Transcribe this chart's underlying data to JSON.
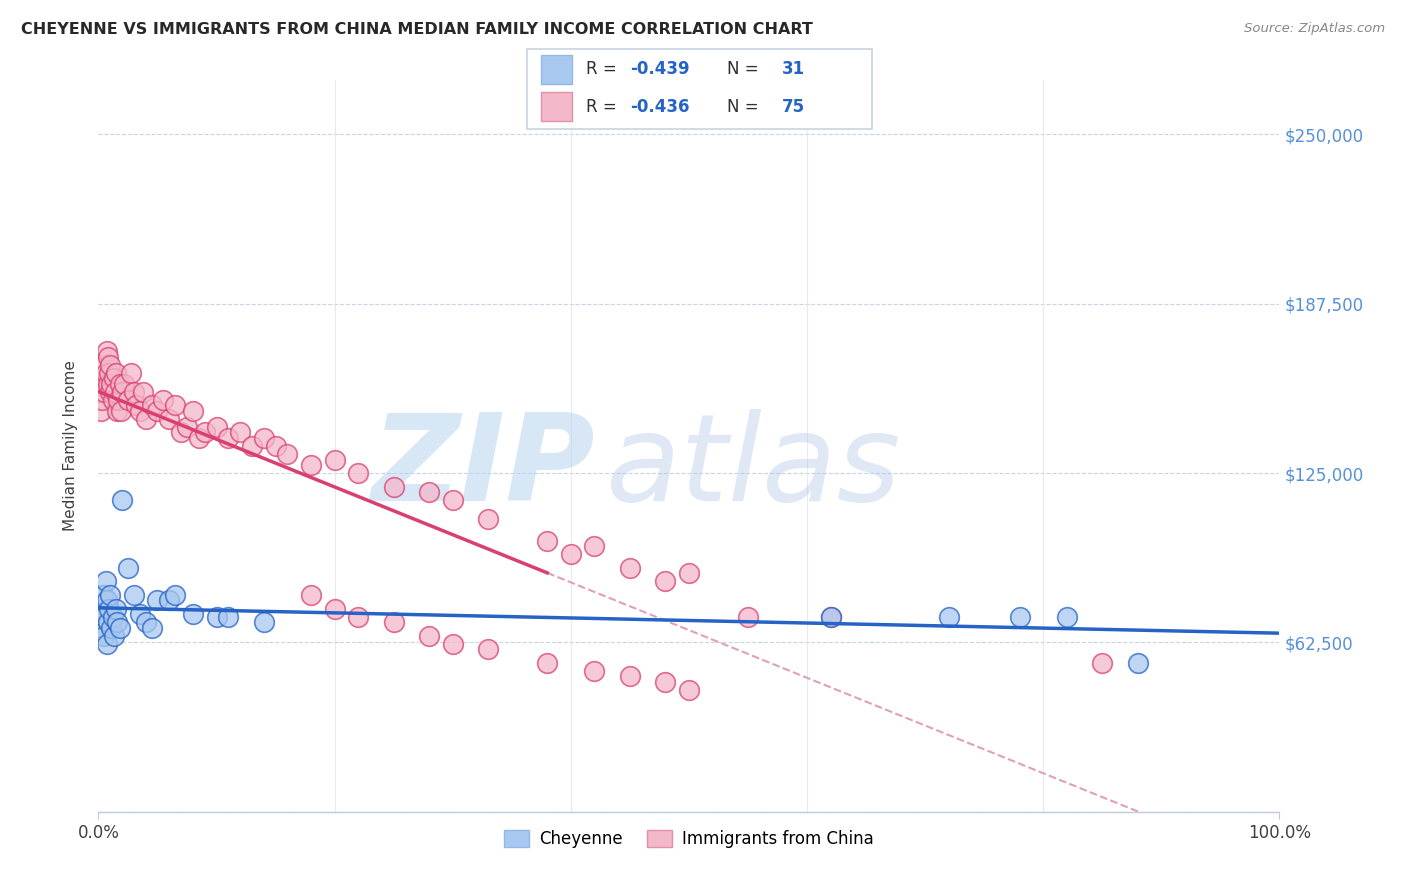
{
  "title": "CHEYENNE VS IMMIGRANTS FROM CHINA MEDIAN FAMILY INCOME CORRELATION CHART",
  "source": "Source: ZipAtlas.com",
  "ylabel": "Median Family Income",
  "xlim": [
    0.0,
    1.0
  ],
  "ylim": [
    0,
    270000
  ],
  "yticks": [
    0,
    62500,
    125000,
    187500,
    250000
  ],
  "ytick_labels": [
    "",
    "$62,500",
    "$125,000",
    "$187,500",
    "$250,000"
  ],
  "cheyenne_color": "#a8c8f0",
  "immigrants_color": "#f4b8cb",
  "line_blue": "#2563c7",
  "line_pink": "#d94070",
  "line_dashed": "#e0a0b8",
  "cheyenne_x": [
    0.002,
    0.003,
    0.004,
    0.005,
    0.005,
    0.006,
    0.007,
    0.007,
    0.008,
    0.009,
    0.01,
    0.011,
    0.012,
    0.013,
    0.015,
    0.016,
    0.018,
    0.02,
    0.025,
    0.03,
    0.035,
    0.04,
    0.045,
    0.05,
    0.06,
    0.065,
    0.08,
    0.1,
    0.11,
    0.14,
    0.62,
    0.72,
    0.78,
    0.82,
    0.88
  ],
  "cheyenne_y": [
    75000,
    68000,
    80000,
    72000,
    65000,
    85000,
    78000,
    62000,
    70000,
    75000,
    80000,
    68000,
    72000,
    65000,
    75000,
    70000,
    68000,
    115000,
    90000,
    80000,
    73000,
    70000,
    68000,
    78000,
    78000,
    80000,
    73000,
    72000,
    72000,
    70000,
    72000,
    72000,
    72000,
    72000,
    55000
  ],
  "immigrants_x": [
    0.002,
    0.003,
    0.004,
    0.005,
    0.005,
    0.006,
    0.007,
    0.008,
    0.008,
    0.009,
    0.01,
    0.01,
    0.011,
    0.012,
    0.013,
    0.014,
    0.015,
    0.016,
    0.017,
    0.018,
    0.019,
    0.02,
    0.022,
    0.025,
    0.028,
    0.03,
    0.032,
    0.035,
    0.038,
    0.04,
    0.045,
    0.05,
    0.055,
    0.06,
    0.065,
    0.07,
    0.075,
    0.08,
    0.085,
    0.09,
    0.1,
    0.11,
    0.12,
    0.13,
    0.14,
    0.15,
    0.16,
    0.18,
    0.2,
    0.22,
    0.25,
    0.28,
    0.3,
    0.33,
    0.38,
    0.4,
    0.42,
    0.45,
    0.48,
    0.5,
    0.18,
    0.2,
    0.22,
    0.25,
    0.28,
    0.3,
    0.33,
    0.38,
    0.42,
    0.45,
    0.48,
    0.5,
    0.55,
    0.62,
    0.85
  ],
  "immigrants_y": [
    148000,
    152000,
    158000,
    165000,
    155000,
    162000,
    170000,
    158000,
    168000,
    162000,
    155000,
    165000,
    158000,
    152000,
    160000,
    155000,
    162000,
    148000,
    152000,
    158000,
    148000,
    155000,
    158000,
    152000,
    162000,
    155000,
    150000,
    148000,
    155000,
    145000,
    150000,
    148000,
    152000,
    145000,
    150000,
    140000,
    142000,
    148000,
    138000,
    140000,
    142000,
    138000,
    140000,
    135000,
    138000,
    135000,
    132000,
    128000,
    130000,
    125000,
    120000,
    118000,
    115000,
    108000,
    100000,
    95000,
    98000,
    90000,
    85000,
    88000,
    80000,
    75000,
    72000,
    70000,
    65000,
    62000,
    60000,
    55000,
    52000,
    50000,
    48000,
    45000,
    72000,
    72000,
    55000
  ],
  "watermark_zip_color": "#ccdff5",
  "watermark_atlas_color": "#c8d8f0"
}
